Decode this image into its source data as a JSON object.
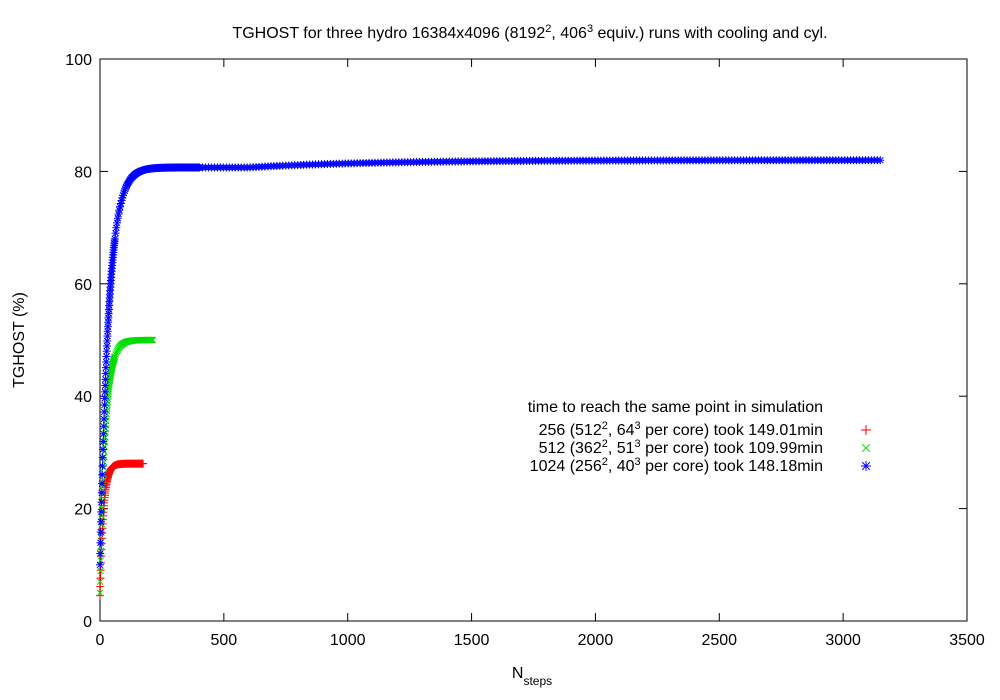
{
  "chart_data": {
    "type": "scatter",
    "title": {
      "parts": [
        {
          "text": "TGHOST for three hydro 16384x4096 (8192"
        },
        {
          "text": "2",
          "sup": true
        },
        {
          "text": ", 406"
        },
        {
          "text": "3",
          "sup": true
        },
        {
          "text": " equiv.) runs with cooling and cyl."
        }
      ]
    },
    "xlabel": {
      "main": "N",
      "sub": "steps"
    },
    "ylabel": "TGHOST (%)",
    "xlim": [
      0,
      3500
    ],
    "ylim": [
      0,
      100
    ],
    "xticks": [
      "0",
      "500",
      "1000",
      "1500",
      "2000",
      "2500",
      "3000",
      "3500"
    ],
    "yticks": [
      "0",
      "20",
      "40",
      "60",
      "80",
      "100"
    ],
    "grid": false,
    "legend": {
      "placement": "right-middle",
      "heading": "time to reach the same point in simulation"
    },
    "series": [
      {
        "name": "256",
        "label_parts": [
          {
            "text": "256 (512"
          },
          {
            "text": "2",
            "sup": true
          },
          {
            "text": ", 64"
          },
          {
            "text": "3",
            "sup": true
          },
          {
            "text": " per core) took 149.01min"
          }
        ],
        "color": "#ff0000",
        "marker": "plus",
        "model": {
          "n_max": 175,
          "y_start": 4.5,
          "y_end": 28.0,
          "tau": 14
        }
      },
      {
        "name": "512",
        "label_parts": [
          {
            "text": "512 (362"
          },
          {
            "text": "2",
            "sup": true
          },
          {
            "text": ", 51"
          },
          {
            "text": "3",
            "sup": true
          },
          {
            "text": " per core) took 109.99min"
          }
        ],
        "color": "#00dd00",
        "marker": "cross",
        "model": {
          "n_max": 215,
          "y_start": 5.0,
          "y_end": 50.0,
          "tau": 22
        }
      },
      {
        "name": "1024",
        "label_parts": [
          {
            "text": "1024 (256"
          },
          {
            "text": "2",
            "sup": true
          },
          {
            "text": ", 40"
          },
          {
            "text": "3",
            "sup": true
          },
          {
            "text": " per core) took 148.18min"
          }
        ],
        "color": "#0000ff",
        "marker": "star",
        "model": {
          "n_max": 3160,
          "y_start": 10.0,
          "y_end": 82.0,
          "tau": 35,
          "tail_n": 600,
          "tail_y": 80.7
        }
      }
    ]
  }
}
